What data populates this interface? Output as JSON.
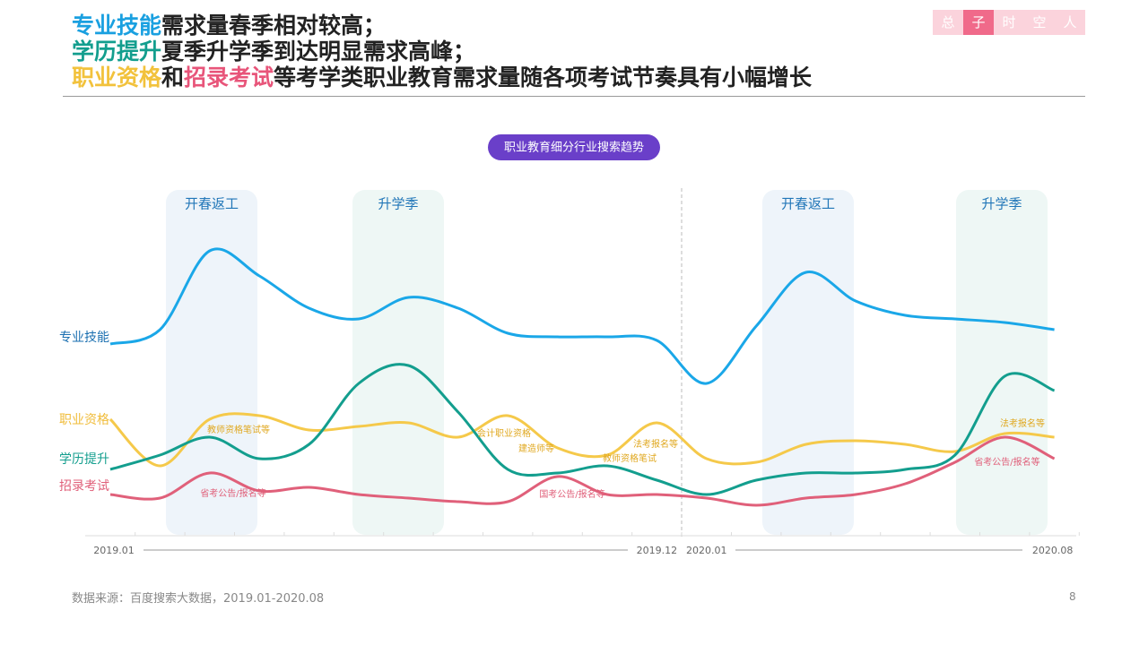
{
  "header": {
    "title_lines": [
      [
        "专业技能",
        "需求量春季相对较高；"
      ],
      [
        "学历提升",
        "夏季升学季到达明显需求高峰；"
      ],
      [
        "职业资格",
        "和",
        "招录考试",
        "等考学类职业教育需求量随各项考试节奏具有小幅增长"
      ]
    ],
    "logo": [
      "总",
      "子",
      "时",
      "空",
      "人"
    ]
  },
  "chart_data": {
    "type": "line",
    "title": "职业教育细分行业搜索趋势",
    "categories": [
      "2019.01",
      null,
      null,
      null,
      null,
      null,
      null,
      null,
      null,
      null,
      null,
      "2019.12",
      "2020.01",
      null,
      null,
      null,
      null,
      null,
      null,
      "2020.08"
    ],
    "ylim": [
      0,
      100
    ],
    "series": [
      {
        "name": "专业技能",
        "color": "#1aa7e8",
        "values": [
          54,
          58,
          80,
          73,
          64,
          61,
          67,
          64,
          57,
          56,
          56,
          55,
          43,
          59,
          74,
          66,
          62,
          61,
          60,
          58
        ]
      },
      {
        "name": "职业资格",
        "color": "#f5c94a",
        "values": [
          33,
          20,
          33,
          34,
          30,
          31,
          32,
          28,
          34,
          25,
          23,
          32,
          22,
          21,
          26,
          27,
          26,
          24,
          29,
          28
        ]
      },
      {
        "name": "学历提升",
        "color": "#139e8e",
        "values": [
          19,
          23,
          28,
          22,
          26,
          43,
          48,
          35,
          19,
          18,
          20,
          16,
          12,
          16,
          18,
          18,
          19,
          23,
          45,
          41
        ]
      },
      {
        "name": "招录考试",
        "color": "#e0607a",
        "values": [
          12,
          11,
          18,
          13,
          14,
          12,
          11,
          10,
          10,
          17,
          12,
          12,
          11,
          9,
          11,
          12,
          15,
          21,
          28,
          22
        ]
      }
    ],
    "periods": [
      "开春返工",
      "升学季",
      "开春返工",
      "升学季"
    ],
    "annotations": [
      "教师资格笔试等",
      "省考公告/报名等",
      "会计职业资格",
      "建造师等",
      "教师资格笔试",
      "法考报名等",
      "国考公告/报名等",
      "法考报名等",
      "省考公告/报名等"
    ]
  },
  "footer": {
    "source": "数据来源：百度搜索大数据，2019.01-2020.08",
    "page": "8"
  }
}
